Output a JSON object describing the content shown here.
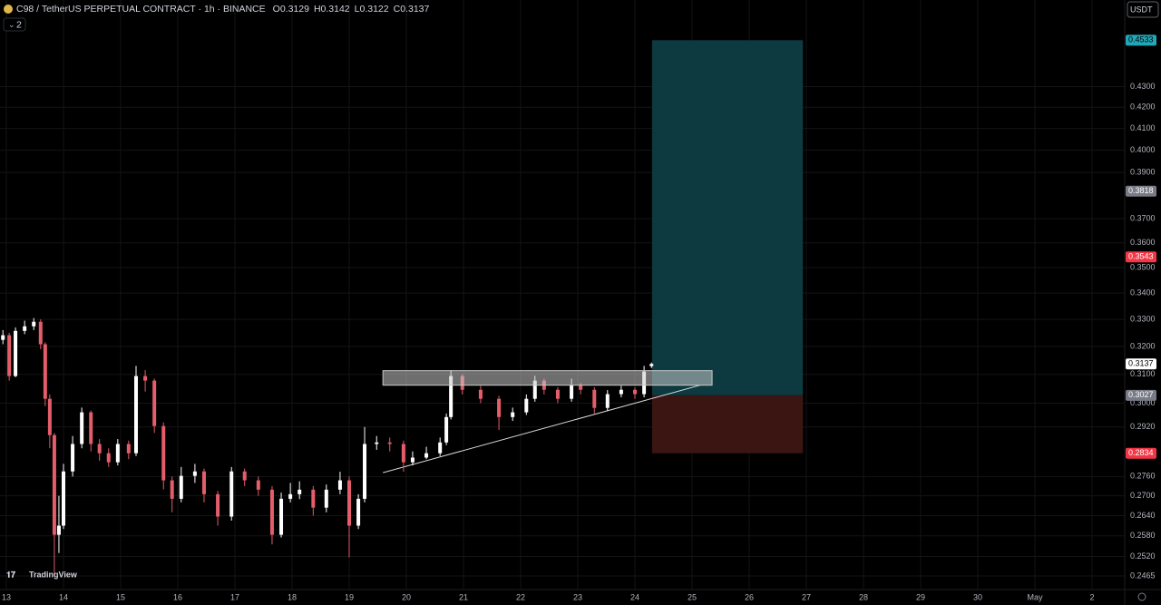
{
  "chart_data": {
    "type": "candlestick",
    "title": "C98 / TetherUS PERPETUAL CONTRACT · 1h · BINANCE",
    "ohlc": [
      {
        "label": "O",
        "value": 0.3129
      },
      {
        "label": "H",
        "value": 0.3142
      },
      {
        "label": "L",
        "value": 0.3122
      },
      {
        "label": "C",
        "value": 0.3137
      }
    ],
    "collapsed_indicators": 2,
    "currency": "USDT",
    "brand": "TradingView",
    "log_scale": true,
    "grid": true,
    "up_color": "#ffffff",
    "down_color": "#e35d6a",
    "xlim": [
      12.889,
      32.571
    ],
    "xticks": [
      13,
      14,
      15,
      16,
      17,
      18,
      19,
      20,
      21,
      22,
      23,
      24,
      25,
      26,
      27,
      28,
      29,
      30,
      {
        "value": 31,
        "label": "May"
      },
      {
        "value": 32,
        "label": "2"
      }
    ],
    "ylim": [
      0.2427,
      0.4745
    ],
    "yticks": [
      {
        "value": 0.43,
        "label": "0.4300"
      },
      {
        "value": 0.42,
        "label": "0.4200"
      },
      {
        "value": 0.41,
        "label": "0.4100"
      },
      {
        "value": 0.4,
        "label": "0.4000"
      },
      {
        "value": 0.39,
        "label": "0.3900"
      },
      {
        "value": 0.37,
        "label": "0.3700"
      },
      {
        "value": 0.36,
        "label": "0.3600"
      },
      {
        "value": 0.35,
        "label": "0.3500"
      },
      {
        "value": 0.34,
        "label": "0.3400"
      },
      {
        "value": 0.33,
        "label": "0.3300"
      },
      {
        "value": 0.32,
        "label": "0.3200"
      },
      {
        "value": 0.31,
        "label": "0.3100"
      },
      {
        "value": 0.3,
        "label": "0.3000"
      },
      {
        "value": 0.292,
        "label": "0.2920"
      },
      {
        "value": 0.276,
        "label": "0.2760"
      },
      {
        "value": 0.27,
        "label": "0.2700"
      },
      {
        "value": 0.264,
        "label": "0.2640"
      },
      {
        "value": 0.258,
        "label": "0.2580"
      },
      {
        "value": 0.252,
        "label": "0.2520"
      },
      {
        "value": 0.2465,
        "label": "0.2465"
      }
    ],
    "candles": {
      "x": [
        12.94,
        13.05,
        13.16,
        13.32,
        13.48,
        13.6,
        13.68,
        13.76,
        13.84,
        13.92,
        14.0,
        14.16,
        14.32,
        14.48,
        14.63,
        14.79,
        14.95,
        15.14,
        15.27,
        15.43,
        15.59,
        15.75,
        15.9,
        16.06,
        16.3,
        16.46,
        16.7,
        16.94,
        17.17,
        17.41,
        17.65,
        17.81,
        17.97,
        18.13,
        18.37,
        18.6,
        18.84,
        19.0,
        19.16,
        19.27,
        19.48,
        19.71,
        19.95,
        20.11,
        20.35,
        20.59,
        20.7,
        20.78,
        20.98,
        21.3,
        21.62,
        21.86,
        22.1,
        22.25,
        22.41,
        22.65,
        22.89,
        23.05,
        23.29,
        23.52,
        23.76,
        24.0,
        24.16,
        24.29
      ],
      "open": [
        0.3224,
        0.3241,
        0.3094,
        0.3257,
        0.3274,
        0.3291,
        0.3208,
        0.3015,
        0.2893,
        0.2583,
        0.261,
        0.2776,
        0.2864,
        0.2969,
        0.2864,
        0.2834,
        0.2805,
        0.2864,
        0.2834,
        0.3094,
        0.3078,
        0.2923,
        0.2748,
        0.2691,
        0.2762,
        0.2776,
        0.2705,
        0.2637,
        0.2776,
        0.2748,
        0.2719,
        0.2583,
        0.2691,
        0.2705,
        0.2719,
        0.2664,
        0.2719,
        0.2748,
        0.261,
        0.2691,
        0.2864,
        0.2869,
        0.2864,
        0.2805,
        0.282,
        0.2834,
        0.2869,
        0.2953,
        0.3094,
        0.3046,
        0.3015,
        0.2953,
        0.2969,
        0.3015,
        0.3078,
        0.3046,
        0.3015,
        0.3062,
        0.3046,
        0.2984,
        0.3031,
        0.3046,
        0.3031,
        0.3129
      ],
      "high": [
        0.326,
        0.325,
        0.327,
        0.3295,
        0.3305,
        0.33,
        0.3215,
        0.303,
        0.29,
        0.27,
        0.28,
        0.289,
        0.2985,
        0.2975,
        0.288,
        0.285,
        0.288,
        0.2875,
        0.313,
        0.3115,
        0.3085,
        0.2935,
        0.276,
        0.279,
        0.28,
        0.2785,
        0.2715,
        0.279,
        0.2785,
        0.276,
        0.273,
        0.271,
        0.274,
        0.2745,
        0.273,
        0.2735,
        0.2775,
        0.276,
        0.2705,
        0.292,
        0.289,
        0.2885,
        0.2875,
        0.284,
        0.2855,
        0.2885,
        0.2965,
        0.3115,
        0.31,
        0.306,
        0.3025,
        0.2985,
        0.303,
        0.3095,
        0.3085,
        0.3055,
        0.3085,
        0.307,
        0.3055,
        0.3045,
        0.306,
        0.3055,
        0.313,
        0.3142
      ],
      "low": [
        0.3208,
        0.3078,
        0.309,
        0.3245,
        0.326,
        0.319,
        0.299,
        0.285,
        0.2467,
        0.253,
        0.26,
        0.276,
        0.285,
        0.284,
        0.281,
        0.279,
        0.2795,
        0.2815,
        0.2825,
        0.304,
        0.29,
        0.272,
        0.265,
        0.268,
        0.274,
        0.268,
        0.261,
        0.2625,
        0.273,
        0.27,
        0.2555,
        0.2575,
        0.268,
        0.269,
        0.264,
        0.265,
        0.2705,
        0.2518,
        0.26,
        0.268,
        0.2845,
        0.284,
        0.2775,
        0.2795,
        0.2815,
        0.2825,
        0.286,
        0.2945,
        0.303,
        0.3,
        0.291,
        0.294,
        0.296,
        0.3005,
        0.303,
        0.3,
        0.3005,
        0.303,
        0.2965,
        0.2975,
        0.302,
        0.3015,
        0.302,
        0.3122
      ],
      "close": [
        0.3241,
        0.3094,
        0.3257,
        0.3274,
        0.3291,
        0.3208,
        0.3015,
        0.2893,
        0.2583,
        0.261,
        0.2776,
        0.2864,
        0.2969,
        0.2864,
        0.2834,
        0.2805,
        0.2864,
        0.2834,
        0.3094,
        0.3078,
        0.2923,
        0.2748,
        0.2691,
        0.2762,
        0.2776,
        0.2705,
        0.2637,
        0.2776,
        0.2748,
        0.2719,
        0.2583,
        0.2691,
        0.2705,
        0.2719,
        0.2664,
        0.2719,
        0.2748,
        0.261,
        0.2691,
        0.2864,
        0.2869,
        0.2864,
        0.2805,
        0.282,
        0.2834,
        0.2869,
        0.2953,
        0.3094,
        0.3046,
        0.3015,
        0.2953,
        0.2969,
        0.3015,
        0.3078,
        0.3046,
        0.3015,
        0.3062,
        0.3046,
        0.2984,
        0.3031,
        0.3046,
        0.3031,
        0.311,
        0.3137
      ]
    },
    "long_position": {
      "x_start": 24.3,
      "x_end": 26.94,
      "target": 0.4533,
      "entry": 0.3027,
      "stop": 0.2834,
      "profit_color": "#0c3a40",
      "loss_color": "#3a1512"
    },
    "zone": {
      "x_start": 19.59,
      "x_end": 25.35,
      "top": 0.3113,
      "bottom": 0.3062,
      "color": "#c8c8c8"
    },
    "trendline": {
      "x": [
        19.59,
        25.14
      ],
      "y": [
        0.2772,
        0.3062
      ],
      "color": "#d8d8d8"
    },
    "price_tags": [
      {
        "value": 0.4533,
        "color": "#22a7b8",
        "text_color": "#000000"
      },
      {
        "value": 0.3818,
        "color": "#787b86",
        "text_color": "#ffffff"
      },
      {
        "value": 0.3543,
        "color": "#f23645",
        "text_color": "#ffffff"
      },
      {
        "value": 0.3137,
        "color": "#ffffff",
        "text_color": "#000000"
      },
      {
        "value": 0.3027,
        "color": "#787b86",
        "text_color": "#ffffff"
      },
      {
        "value": 0.2834,
        "color": "#f23645",
        "text_color": "#ffffff"
      }
    ]
  }
}
